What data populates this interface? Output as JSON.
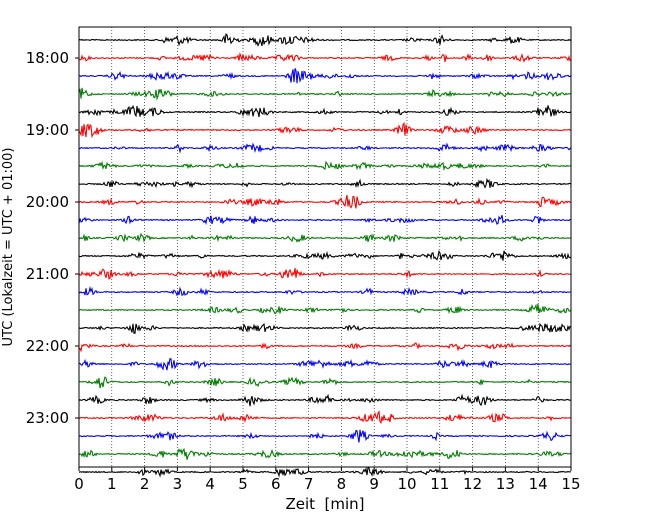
{
  "chart_data": {
    "type": "line",
    "title": "",
    "xlabel": "Zeit  [min]",
    "ylabel": "UTC (Lokalzeit = UTC + 01:00)",
    "xlim": [
      0,
      15
    ],
    "x_ticks": [
      "0",
      "1",
      "2",
      "3",
      "4",
      "5",
      "6",
      "7",
      "8",
      "9",
      "10",
      "11",
      "12",
      "13",
      "14",
      "15"
    ],
    "y_tick_labels": [
      "18:00",
      "19:00",
      "20:00",
      "21:00",
      "22:00",
      "23:00"
    ],
    "grid": "vertical dotted lines at each minute",
    "trace_interval_minutes": 15,
    "trace_start": "17:45",
    "trace_end": "23:45",
    "trace_count": 25,
    "color_cycle": [
      "#000000",
      "#ff0000",
      "#0000ff",
      "#007f00"
    ],
    "legend": "none"
  }
}
